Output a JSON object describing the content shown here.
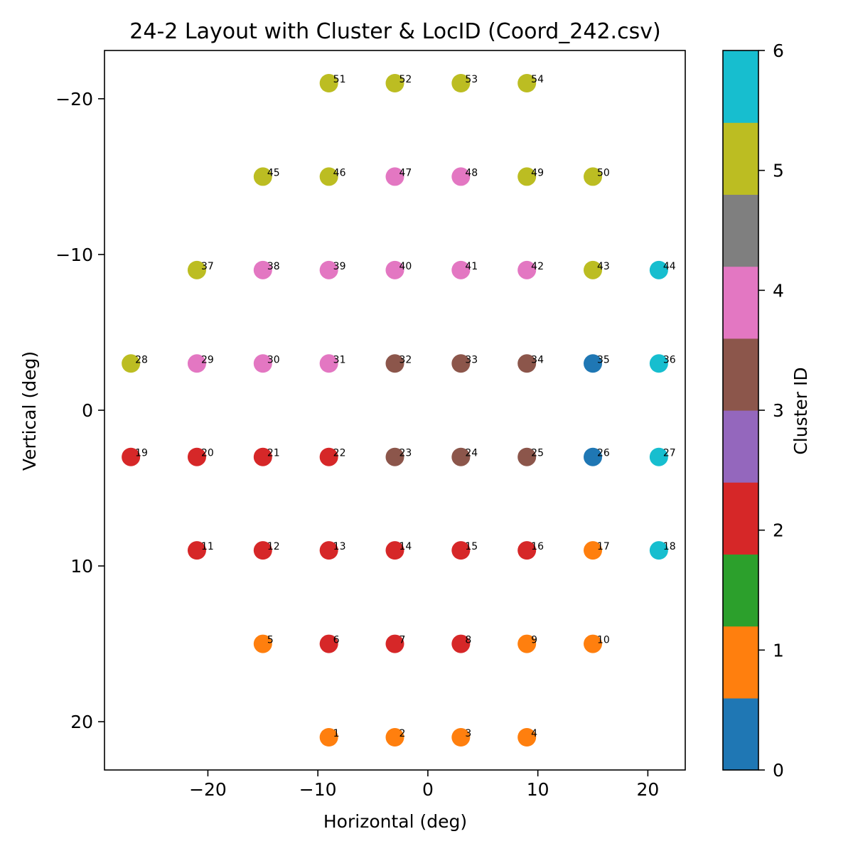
{
  "chart_data": {
    "type": "scatter",
    "title": "24-2 Layout with Cluster & LocID (Coord_242.csv)",
    "xlabel": "Horizontal (deg)",
    "ylabel": "Vertical (deg)",
    "xlim": [
      -29.4,
      23.4
    ],
    "ylim": [
      -23.1,
      23.1
    ],
    "y_axis_inverted": true,
    "grid": false,
    "xticks": [
      -20,
      -10,
      0,
      10,
      20
    ],
    "yticks": [
      -20,
      -10,
      0,
      10,
      20
    ],
    "colorbar": {
      "label": "Cluster ID",
      "min": 0,
      "max": 6,
      "ticks": [
        0,
        1,
        2,
        3,
        4,
        5,
        6
      ],
      "colormap": "tab10",
      "segments": [
        "#1f77b4",
        "#ff7f0e",
        "#2ca02c",
        "#d62728",
        "#9467bd",
        "#8c564b",
        "#e377c2",
        "#7f7f7f",
        "#bcbd22",
        "#17becf"
      ]
    },
    "cluster_colors": {
      "0": "#1f77b4",
      "1": "#ff7f0e",
      "2": "#d62728",
      "3": "#8c564b",
      "4": "#e377c2",
      "5": "#bcbd22",
      "6": "#17becf"
    },
    "points": [
      {
        "id": 1,
        "x": -9,
        "y": 21,
        "cluster": 1
      },
      {
        "id": 2,
        "x": -3,
        "y": 21,
        "cluster": 1
      },
      {
        "id": 3,
        "x": 3,
        "y": 21,
        "cluster": 1
      },
      {
        "id": 4,
        "x": 9,
        "y": 21,
        "cluster": 1
      },
      {
        "id": 5,
        "x": -15,
        "y": 15,
        "cluster": 1
      },
      {
        "id": 6,
        "x": -9,
        "y": 15,
        "cluster": 2
      },
      {
        "id": 7,
        "x": -3,
        "y": 15,
        "cluster": 2
      },
      {
        "id": 8,
        "x": 3,
        "y": 15,
        "cluster": 2
      },
      {
        "id": 9,
        "x": 9,
        "y": 15,
        "cluster": 1
      },
      {
        "id": 10,
        "x": 15,
        "y": 15,
        "cluster": 1
      },
      {
        "id": 11,
        "x": -21,
        "y": 9,
        "cluster": 2
      },
      {
        "id": 12,
        "x": -15,
        "y": 9,
        "cluster": 2
      },
      {
        "id": 13,
        "x": -9,
        "y": 9,
        "cluster": 2
      },
      {
        "id": 14,
        "x": -3,
        "y": 9,
        "cluster": 2
      },
      {
        "id": 15,
        "x": 3,
        "y": 9,
        "cluster": 2
      },
      {
        "id": 16,
        "x": 9,
        "y": 9,
        "cluster": 2
      },
      {
        "id": 17,
        "x": 15,
        "y": 9,
        "cluster": 1
      },
      {
        "id": 18,
        "x": 21,
        "y": 9,
        "cluster": 6
      },
      {
        "id": 19,
        "x": -27,
        "y": 3,
        "cluster": 2
      },
      {
        "id": 20,
        "x": -21,
        "y": 3,
        "cluster": 2
      },
      {
        "id": 21,
        "x": -15,
        "y": 3,
        "cluster": 2
      },
      {
        "id": 22,
        "x": -9,
        "y": 3,
        "cluster": 2
      },
      {
        "id": 23,
        "x": -3,
        "y": 3,
        "cluster": 3
      },
      {
        "id": 24,
        "x": 3,
        "y": 3,
        "cluster": 3
      },
      {
        "id": 25,
        "x": 9,
        "y": 3,
        "cluster": 3
      },
      {
        "id": 26,
        "x": 15,
        "y": 3,
        "cluster": 0
      },
      {
        "id": 27,
        "x": 21,
        "y": 3,
        "cluster": 6
      },
      {
        "id": 28,
        "x": -27,
        "y": -3,
        "cluster": 5
      },
      {
        "id": 29,
        "x": -21,
        "y": -3,
        "cluster": 4
      },
      {
        "id": 30,
        "x": -15,
        "y": -3,
        "cluster": 4
      },
      {
        "id": 31,
        "x": -9,
        "y": -3,
        "cluster": 4
      },
      {
        "id": 32,
        "x": -3,
        "y": -3,
        "cluster": 3
      },
      {
        "id": 33,
        "x": 3,
        "y": -3,
        "cluster": 3
      },
      {
        "id": 34,
        "x": 9,
        "y": -3,
        "cluster": 3
      },
      {
        "id": 35,
        "x": 15,
        "y": -3,
        "cluster": 0
      },
      {
        "id": 36,
        "x": 21,
        "y": -3,
        "cluster": 6
      },
      {
        "id": 37,
        "x": -21,
        "y": -9,
        "cluster": 5
      },
      {
        "id": 38,
        "x": -15,
        "y": -9,
        "cluster": 4
      },
      {
        "id": 39,
        "x": -9,
        "y": -9,
        "cluster": 4
      },
      {
        "id": 40,
        "x": -3,
        "y": -9,
        "cluster": 4
      },
      {
        "id": 41,
        "x": 3,
        "y": -9,
        "cluster": 4
      },
      {
        "id": 42,
        "x": 9,
        "y": -9,
        "cluster": 4
      },
      {
        "id": 43,
        "x": 15,
        "y": -9,
        "cluster": 5
      },
      {
        "id": 44,
        "x": 21,
        "y": -9,
        "cluster": 6
      },
      {
        "id": 45,
        "x": -15,
        "y": -15,
        "cluster": 5
      },
      {
        "id": 46,
        "x": -9,
        "y": -15,
        "cluster": 5
      },
      {
        "id": 47,
        "x": -3,
        "y": -15,
        "cluster": 4
      },
      {
        "id": 48,
        "x": 3,
        "y": -15,
        "cluster": 4
      },
      {
        "id": 49,
        "x": 9,
        "y": -15,
        "cluster": 5
      },
      {
        "id": 50,
        "x": 15,
        "y": -15,
        "cluster": 5
      },
      {
        "id": 51,
        "x": -9,
        "y": -21,
        "cluster": 5
      },
      {
        "id": 52,
        "x": -3,
        "y": -21,
        "cluster": 5
      },
      {
        "id": 53,
        "x": 3,
        "y": -21,
        "cluster": 5
      },
      {
        "id": 54,
        "x": 9,
        "y": -21,
        "cluster": 5
      }
    ]
  }
}
